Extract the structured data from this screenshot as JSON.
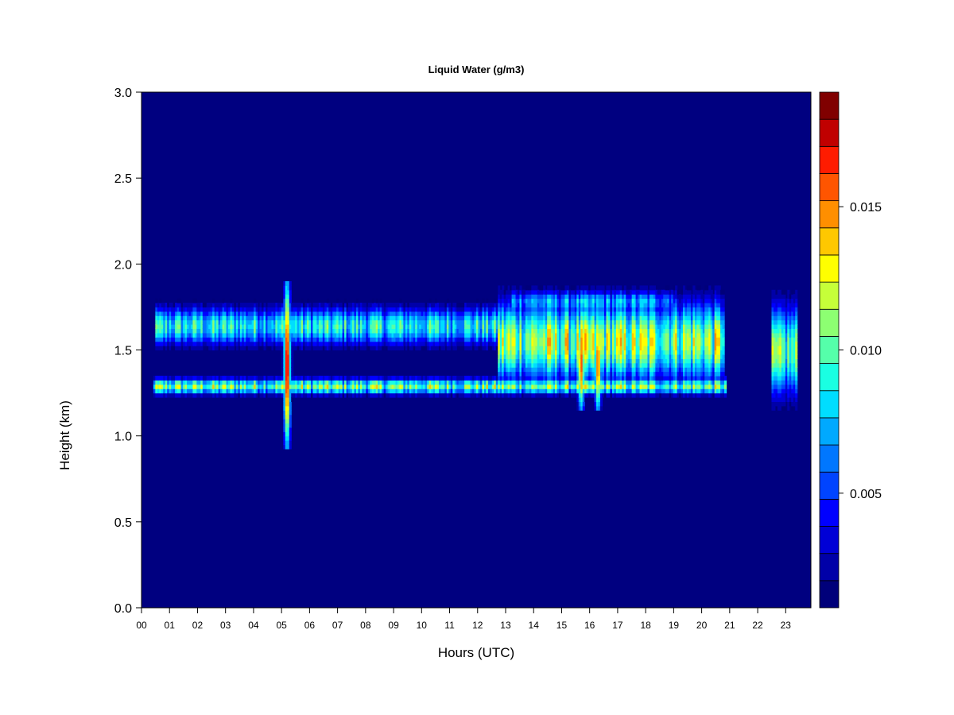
{
  "chart_data": {
    "type": "heatmap",
    "title": "Liquid Water (g/m3)",
    "xlabel": "Hours (UTC)",
    "ylabel": "Height (km)",
    "x_ticks": [
      "00",
      "01",
      "02",
      "03",
      "04",
      "05",
      "06",
      "07",
      "08",
      "09",
      "10",
      "11",
      "12",
      "13",
      "14",
      "15",
      "16",
      "17",
      "18",
      "19",
      "20",
      "21",
      "22",
      "23"
    ],
    "xlim": [
      0,
      23.9
    ],
    "y_ticks": [
      "0.0",
      "0.5",
      "1.0",
      "1.5",
      "2.0",
      "2.5",
      "3.0"
    ],
    "ylim": [
      0,
      3.0
    ],
    "colorbar": {
      "range": [
        0.001,
        0.019
      ],
      "tick_values": [
        0.005,
        0.01,
        0.015
      ],
      "tick_labels": [
        "0.005",
        "0.010",
        "0.015"
      ],
      "levels": 18,
      "colors": [
        "#00007a",
        "#0000a8",
        "#0000d6",
        "#0000ff",
        "#0044ff",
        "#0077ff",
        "#00a9ff",
        "#00ddff",
        "#1affe2",
        "#55ffaa",
        "#8dff72",
        "#c6ff39",
        "#ffff00",
        "#ffc800",
        "#ff8f00",
        "#ff5500",
        "#ff1c00",
        "#c00000",
        "#800000"
      ]
    },
    "background_color": "#000080",
    "cloud_layers": [
      {
        "x_start": 0.4,
        "x_end": 20.9,
        "y_center": 1.29,
        "y_half_width": 0.05,
        "peak_value": 0.012,
        "note_value_units": "g/m3"
      },
      {
        "x_start": 0.5,
        "x_end": 20.8,
        "y_center": 1.64,
        "y_half_width": 0.12,
        "peak_value": 0.01
      },
      {
        "x_start": 13.2,
        "x_end": 19.0,
        "y_center": 1.78,
        "y_half_width": 0.08,
        "peak_value": 0.008
      },
      {
        "x_start": 12.7,
        "x_end": 20.8,
        "y_center": 1.55,
        "y_half_width": 0.25,
        "peak_value": 0.013
      },
      {
        "x_start": 22.5,
        "x_end": 23.4,
        "y_center": 1.5,
        "y_half_width": 0.28,
        "peak_value": 0.011
      }
    ],
    "hot_spots": [
      {
        "x": 5.2,
        "y_min": 0.93,
        "y_max": 1.9,
        "peak_value": 0.018
      },
      {
        "x": 15.7,
        "y_min": 1.15,
        "y_max": 1.7,
        "peak_value": 0.016
      },
      {
        "x": 16.3,
        "y_min": 1.15,
        "y_max": 1.7,
        "peak_value": 0.016
      },
      {
        "x": 18.2,
        "y_min": 1.3,
        "y_max": 1.75,
        "peak_value": 0.014
      }
    ]
  }
}
